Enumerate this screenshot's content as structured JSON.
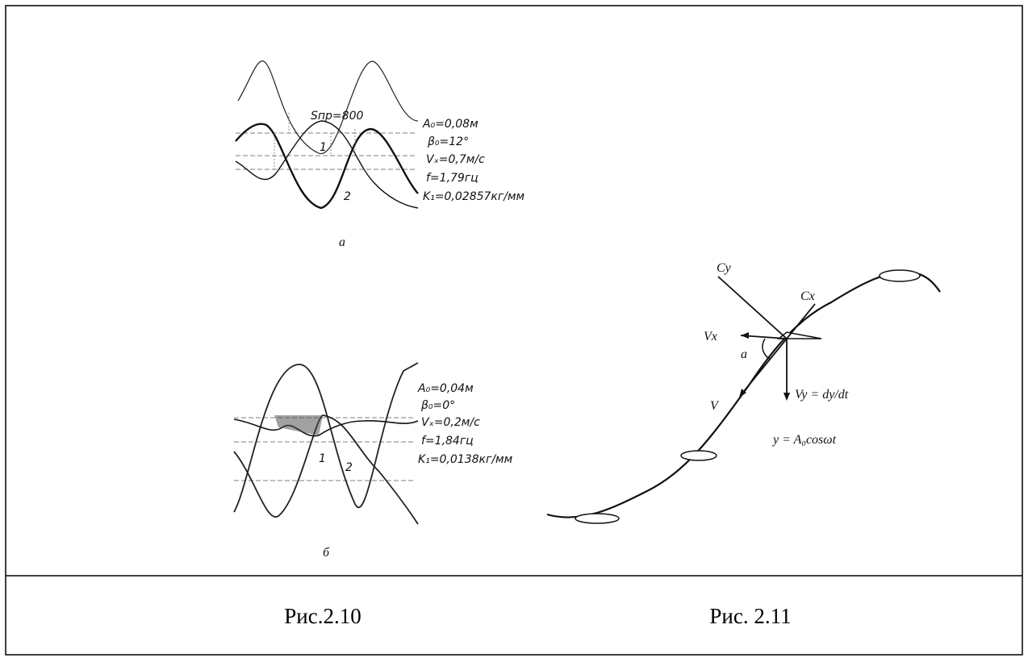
{
  "figure_2_10": {
    "panel_a": {
      "label": "а",
      "area_label": "Sпр=800",
      "curve_labels": [
        "1",
        "2"
      ],
      "params": [
        "A₀=0,08м",
        "β₀=12°",
        "Vₓ=0,7м/с",
        "f=1,79гц",
        "K₁=0,02857кг/мм"
      ]
    },
    "panel_b": {
      "label": "б",
      "curve_labels": [
        "1",
        "2"
      ],
      "params": [
        "A₀=0,04м",
        "β₀=0°",
        "Vₓ=0,2м/с",
        "f=1,84гц",
        "K₁=0,0138кг/мм"
      ]
    }
  },
  "figure_2_11": {
    "labels": {
      "cy": "Cy",
      "cx": "Cx",
      "vx": "Vx",
      "angle": "a",
      "v": "V",
      "vy": "Vy = dy/dt",
      "equation": "y = A₀cosωt"
    }
  },
  "captions": [
    "Рис.2.10",
    "Рис. 2.11"
  ]
}
